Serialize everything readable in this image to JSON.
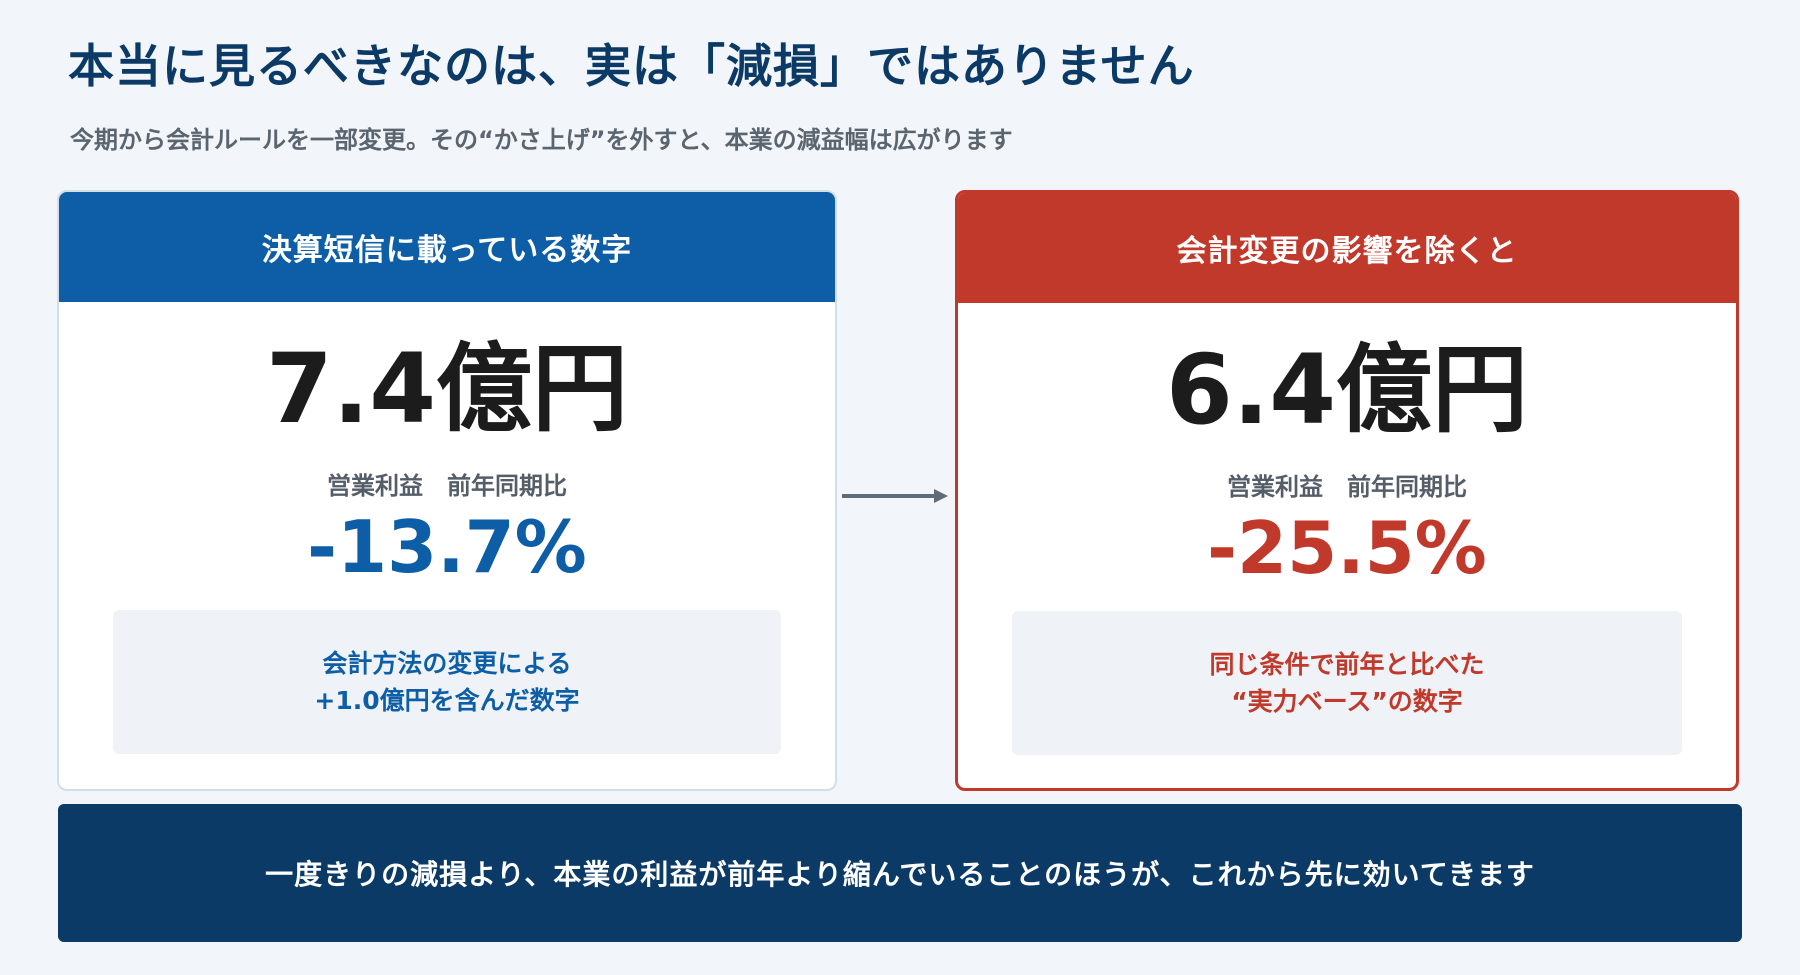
{
  "header": {
    "title": "本当に見るべきなのは、実は「減損」ではありません",
    "subtitle": "今期から会計ルールを一部変更。その“かさ上げ”を外すと、本業の減益幅は広がります"
  },
  "left_card": {
    "heading": "決算短信に載っている数字",
    "value": "7.4億円",
    "metric_label": "営業利益　前年同期比",
    "change": "-13.7%",
    "note_line1": "会計方法の変更による",
    "note_line2": "+1.0億円を含んだ数字"
  },
  "right_card": {
    "heading": "会計変更の影響を除くと",
    "value": "6.4億円",
    "metric_label": "営業利益　前年同期比",
    "change": "-25.5%",
    "note_line1": "同じ条件で前年と比べた",
    "note_line2": "“実力ベース”の数字"
  },
  "banner": {
    "text": "一度きりの減損より、本業の利益が前年より縮んでいることのほうが、これから先に効いてきます"
  },
  "colors": {
    "navy": "#0c3a66",
    "blue": "#0d5ea6",
    "red": "#c0392b",
    "background": "#f2f5f9"
  },
  "icons": {
    "connector": "arrow-right-icon"
  }
}
